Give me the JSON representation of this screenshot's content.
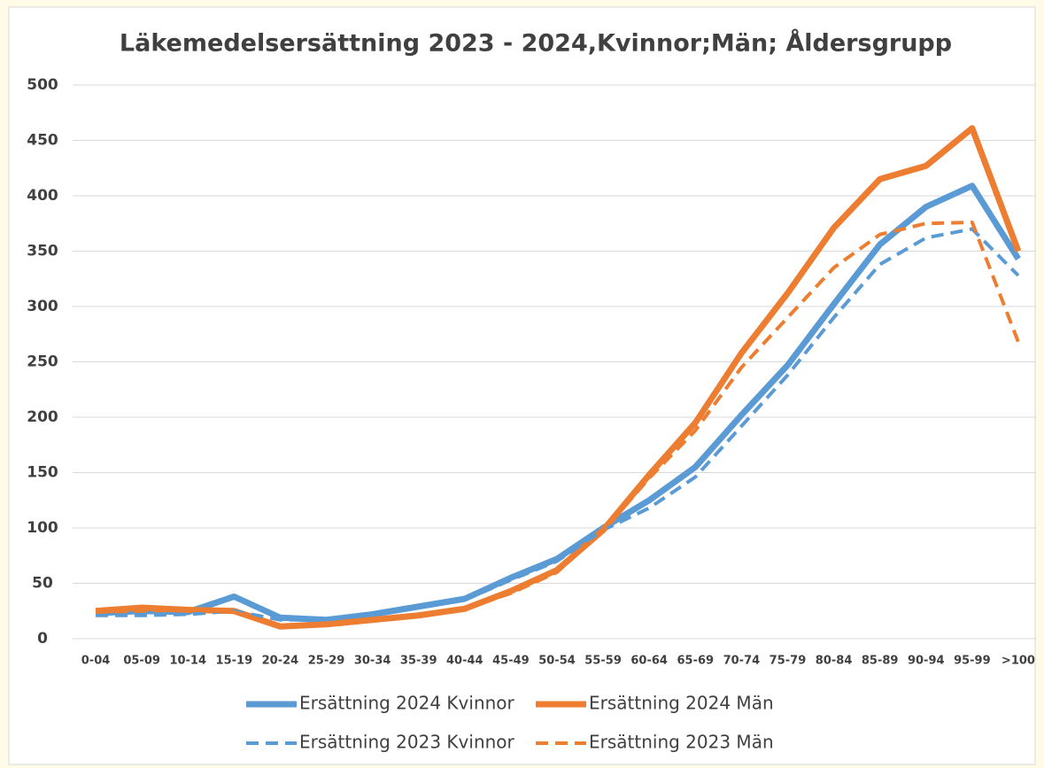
{
  "chart_data": {
    "type": "line",
    "title": "Läkemedelsersättning 2023 - 2024,Kvinnor;Män; Åldersgrupp",
    "categories": [
      "0-04",
      "05-09",
      "10-14",
      "15-19",
      "20-24",
      "25-29",
      "30-34",
      "35-39",
      "40-44",
      "45-49",
      "50-54",
      "55-59",
      "60-64",
      "65-69",
      "70-74",
      "75-79",
      "80-84",
      "85-89",
      "90-94",
      "95-99",
      ">100"
    ],
    "series": [
      {
        "name": "Ersättning 2024 Kvinnor",
        "color": "#5b9bd5",
        "dashed": false,
        "values": [
          23,
          25,
          24,
          38,
          19,
          17,
          22,
          29,
          36,
          55,
          72,
          100,
          125,
          155,
          202,
          247,
          302,
          356,
          390,
          409,
          343
        ]
      },
      {
        "name": "Ersättning 2024 Män",
        "color": "#ed7d31",
        "dashed": false,
        "values": [
          25,
          28,
          26,
          25,
          11,
          13,
          17,
          21,
          27,
          43,
          62,
          98,
          148,
          195,
          258,
          312,
          371,
          415,
          427,
          461,
          350
        ]
      },
      {
        "name": "Ersättning 2023 Kvinnor",
        "color": "#5b9bd5",
        "dashed": true,
        "values": [
          21,
          21,
          22,
          25,
          17,
          17,
          22,
          28,
          35,
          53,
          70,
          98,
          118,
          146,
          192,
          238,
          290,
          338,
          362,
          370,
          328
        ]
      },
      {
        "name": "Ersättning 2023 Män",
        "color": "#ed7d31",
        "dashed": true,
        "values": [
          24,
          25,
          26,
          24,
          12,
          13,
          17,
          21,
          27,
          41,
          60,
          97,
          145,
          188,
          245,
          290,
          335,
          365,
          375,
          376,
          268
        ]
      }
    ],
    "ylim": [
      0,
      500
    ],
    "yticks": [
      0,
      50,
      100,
      150,
      200,
      250,
      300,
      350,
      400,
      450,
      500
    ],
    "grid": true
  }
}
